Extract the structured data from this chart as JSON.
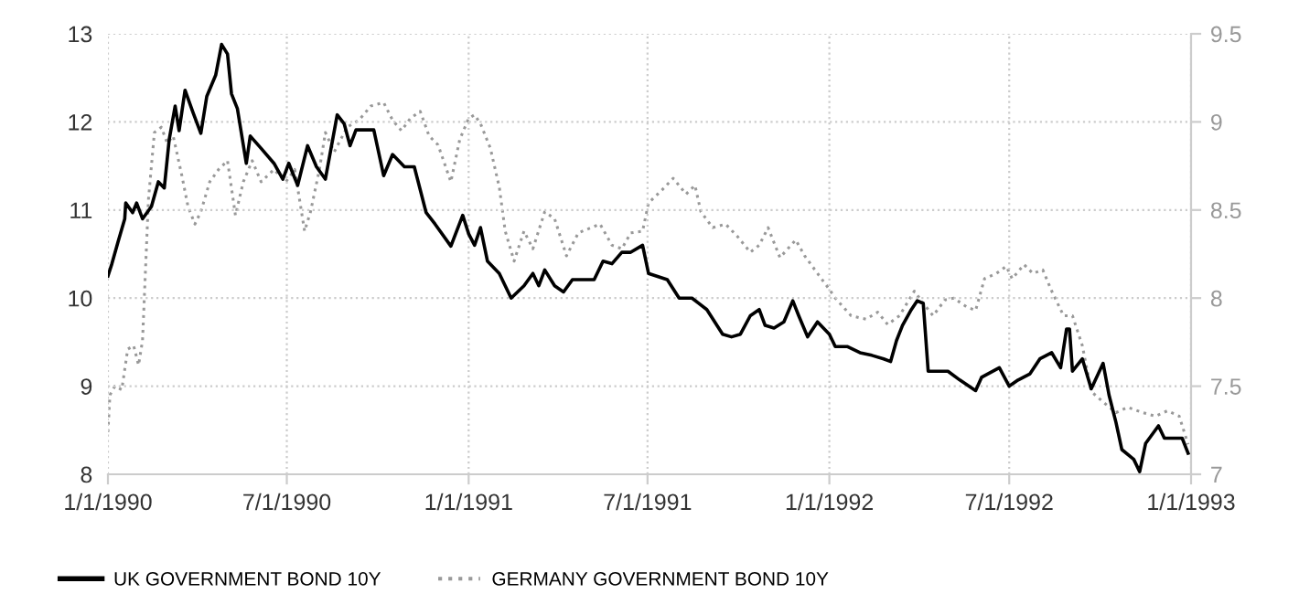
{
  "chart_data": {
    "type": "line",
    "grid": true,
    "legend": "bottom left",
    "xlim": [
      "1990-01-01",
      "1993-01-01"
    ],
    "xticks": [
      {
        "value": "1990-01-01",
        "label": "1/1/1990"
      },
      {
        "value": "1990-07-01",
        "label": "7/1/1990"
      },
      {
        "value": "1991-01-01",
        "label": "1/1/1991"
      },
      {
        "value": "1991-07-01",
        "label": "7/1/1991"
      },
      {
        "value": "1992-01-01",
        "label": "1/1/1992"
      },
      {
        "value": "1992-07-01",
        "label": "7/1/1992"
      },
      {
        "value": "1993-01-01",
        "label": "1/1/1993"
      }
    ],
    "ylim": [
      8,
      13
    ],
    "yticks": [
      8,
      9,
      10,
      11,
      12,
      13
    ],
    "y2lim": [
      7,
      9.5
    ],
    "y2ticks": [
      7,
      7.5,
      8,
      8.5,
      9,
      9.5
    ],
    "series": [
      {
        "name": "UK GOVERNMENT BOND 10Y",
        "color": "#000000",
        "line_style": "solid",
        "x": [
          "1990-01-01",
          "1990-01-05",
          "1990-01-11",
          "1990-01-18",
          "1990-01-19",
          "1990-01-26",
          "1990-01-30",
          "1990-02-05",
          "1990-02-14",
          "1990-02-21",
          "1990-02-27",
          "1990-03-04",
          "1990-03-10",
          "1990-03-14",
          "1990-03-20",
          "1990-03-28",
          "1990-04-05",
          "1990-04-11",
          "1990-04-20",
          "1990-04-26",
          "1990-05-02",
          "1990-05-06",
          "1990-05-12",
          "1990-05-21",
          "1990-05-25",
          "1990-06-05",
          "1990-06-18",
          "1990-06-27",
          "1990-07-03",
          "1990-07-12",
          "1990-07-22",
          "1990-07-31",
          "1990-08-09",
          "1990-08-21",
          "1990-08-28",
          "1990-09-03",
          "1990-09-09",
          "1990-09-18",
          "1990-09-27",
          "1990-10-07",
          "1990-10-16",
          "1990-10-28",
          "1990-11-07",
          "1990-11-19",
          "1990-11-28",
          "1990-12-14",
          "1990-12-26",
          "1991-01-01",
          "1991-01-07",
          "1991-01-13",
          "1991-01-20",
          "1991-02-01",
          "1991-02-13",
          "1991-02-26",
          "1991-03-07",
          "1991-03-13",
          "1991-03-19",
          "1991-03-29",
          "1991-04-07",
          "1991-04-16",
          "1991-04-29",
          "1991-05-08",
          "1991-05-17",
          "1991-05-26",
          "1991-06-05",
          "1991-06-14",
          "1991-06-26",
          "1991-07-02",
          "1991-07-21",
          "1991-08-02",
          "1991-08-15",
          "1991-08-30",
          "1991-09-15",
          "1991-09-24",
          "1991-10-03",
          "1991-10-13",
          "1991-10-22",
          "1991-10-28",
          "1991-11-06",
          "1991-11-16",
          "1991-11-25",
          "1991-12-01",
          "1991-12-10",
          "1991-12-20",
          "1992-01-01",
          "1992-01-07",
          "1992-01-19",
          "1992-02-01",
          "1992-02-13",
          "1992-02-25",
          "1992-03-03",
          "1992-03-09",
          "1992-03-15",
          "1992-03-24",
          "1992-03-30",
          "1992-04-05",
          "1992-04-10",
          "1992-04-21",
          "1992-04-30",
          "1992-05-12",
          "1992-05-28",
          "1992-06-03",
          "1992-06-21",
          "1992-07-01",
          "1992-07-10",
          "1992-07-22",
          "1992-08-01",
          "1992-08-13",
          "1992-08-22",
          "1992-08-28",
          "1992-08-31",
          "1992-09-03",
          "1992-09-13",
          "1992-09-22",
          "1992-10-04",
          "1992-10-10",
          "1992-10-17",
          "1992-10-23",
          "1992-11-04",
          "1992-11-10",
          "1992-11-16",
          "1992-11-29",
          "1992-12-05",
          "1992-12-23",
          "1992-12-29"
        ],
        "values": [
          10.25,
          10.39,
          10.63,
          10.9,
          11.08,
          10.97,
          11.08,
          10.9,
          11.04,
          11.32,
          11.25,
          11.8,
          12.18,
          11.9,
          12.36,
          12.11,
          11.87,
          12.29,
          12.53,
          12.88,
          12.77,
          12.32,
          12.15,
          11.53,
          11.84,
          11.7,
          11.53,
          11.35,
          11.53,
          11.28,
          11.73,
          11.49,
          11.35,
          12.08,
          11.98,
          11.73,
          11.91,
          11.91,
          11.91,
          11.39,
          11.63,
          11.49,
          11.49,
          10.97,
          10.84,
          10.59,
          10.94,
          10.73,
          10.6,
          10.8,
          10.42,
          10.28,
          10.0,
          10.14,
          10.28,
          10.14,
          10.32,
          10.14,
          10.07,
          10.21,
          10.21,
          10.21,
          10.42,
          10.39,
          10.52,
          10.52,
          10.6,
          10.28,
          10.21,
          10.0,
          10.0,
          9.87,
          9.59,
          9.56,
          9.59,
          9.8,
          9.87,
          9.69,
          9.66,
          9.73,
          9.97,
          9.8,
          9.56,
          9.73,
          9.59,
          9.45,
          9.45,
          9.38,
          9.35,
          9.31,
          9.28,
          9.52,
          9.69,
          9.87,
          9.97,
          9.94,
          9.17,
          9.17,
          9.17,
          9.07,
          8.95,
          9.1,
          9.21,
          9.0,
          9.07,
          9.14,
          9.31,
          9.38,
          9.21,
          9.65,
          9.65,
          9.17,
          9.31,
          8.97,
          9.26,
          8.9,
          8.59,
          8.28,
          8.17,
          8.03,
          8.35,
          8.55,
          8.41,
          8.41,
          8.24
        ]
      },
      {
        "name": "GERMANY GOVERNMENT BOND 10Y",
        "color": "#999999",
        "line_style": "dotted",
        "axis": "y2",
        "x": [
          "1990-01-01",
          "1990-01-03",
          "1990-01-08",
          "1990-01-15",
          "1990-01-21",
          "1990-01-27",
          "1990-02-01",
          "1990-02-05",
          "1990-02-11",
          "1990-02-17",
          "1990-02-24",
          "1990-03-02",
          "1990-03-08",
          "1990-03-17",
          "1990-03-23",
          "1990-03-30",
          "1990-04-05",
          "1990-04-14",
          "1990-04-23",
          "1990-05-02",
          "1990-05-10",
          "1990-05-18",
          "1990-05-27",
          "1990-06-05",
          "1990-06-18",
          "1990-06-30",
          "1990-07-09",
          "1990-07-19",
          "1990-07-25",
          "1990-08-03",
          "1990-08-09",
          "1990-08-18",
          "1990-08-31",
          "1990-09-12",
          "1990-09-24",
          "1990-10-07",
          "1990-10-16",
          "1990-10-25",
          "1990-11-03",
          "1990-11-13",
          "1990-11-22",
          "1990-12-01",
          "1990-12-14",
          "1990-12-23",
          "1991-01-01",
          "1991-01-07",
          "1991-01-13",
          "1991-01-23",
          "1991-02-01",
          "1991-02-07",
          "1991-02-16",
          "1991-02-26",
          "1991-03-07",
          "1991-03-19",
          "1991-03-29",
          "1991-04-10",
          "1991-04-22",
          "1991-05-05",
          "1991-05-14",
          "1991-05-26",
          "1991-06-05",
          "1991-06-14",
          "1991-06-26",
          "1991-07-02",
          "1991-07-15",
          "1991-07-27",
          "1991-08-09",
          "1991-08-18",
          "1991-08-24",
          "1991-09-05",
          "1991-09-18",
          "1991-09-30",
          "1991-10-13",
          "1991-10-22",
          "1991-10-31",
          "1991-11-12",
          "1991-11-28",
          "1991-12-07",
          "1991-12-20",
          "1992-01-01",
          "1992-01-07",
          "1992-01-23",
          "1992-02-07",
          "1992-02-19",
          "1992-02-29",
          "1992-03-12",
          "1992-03-27",
          "1992-04-05",
          "1992-04-15",
          "1992-04-27",
          "1992-05-06",
          "1992-05-19",
          "1992-05-28",
          "1992-06-06",
          "1992-06-18",
          "1992-06-28",
          "1992-07-04",
          "1992-07-16",
          "1992-07-25",
          "1992-08-04",
          "1992-08-13",
          "1992-08-25",
          "1992-09-03",
          "1992-09-13",
          "1992-09-22",
          "1992-10-04",
          "1992-10-17",
          "1992-10-29",
          "1992-11-13",
          "1992-11-26",
          "1992-12-08",
          "1992-12-20",
          "1992-12-29"
        ],
        "values": [
          7.24,
          7.45,
          7.5,
          7.48,
          7.71,
          7.73,
          7.62,
          7.76,
          8.56,
          8.94,
          8.97,
          8.88,
          8.92,
          8.69,
          8.52,
          8.42,
          8.49,
          8.66,
          8.73,
          8.78,
          8.47,
          8.66,
          8.78,
          8.66,
          8.73,
          8.66,
          8.73,
          8.38,
          8.49,
          8.73,
          8.94,
          8.83,
          8.97,
          9.01,
          9.09,
          9.11,
          9.01,
          8.95,
          9.02,
          9.06,
          8.92,
          8.87,
          8.66,
          8.9,
          9.02,
          9.04,
          8.99,
          8.85,
          8.63,
          8.38,
          8.21,
          8.38,
          8.28,
          8.49,
          8.45,
          8.24,
          8.37,
          8.4,
          8.42,
          8.3,
          8.28,
          8.37,
          8.38,
          8.54,
          8.61,
          8.68,
          8.59,
          8.64,
          8.49,
          8.4,
          8.42,
          8.35,
          8.26,
          8.3,
          8.4,
          8.23,
          8.33,
          8.24,
          8.14,
          8.05,
          8.0,
          7.9,
          7.88,
          7.92,
          7.85,
          7.9,
          8.04,
          7.97,
          7.9,
          7.99,
          8.0,
          7.95,
          7.93,
          8.11,
          8.14,
          8.18,
          8.11,
          8.19,
          8.14,
          8.16,
          8.04,
          7.9,
          7.9,
          7.73,
          7.47,
          7.41,
          7.35,
          7.38,
          7.35,
          7.33,
          7.36,
          7.33,
          7.17
        ]
      }
    ]
  }
}
